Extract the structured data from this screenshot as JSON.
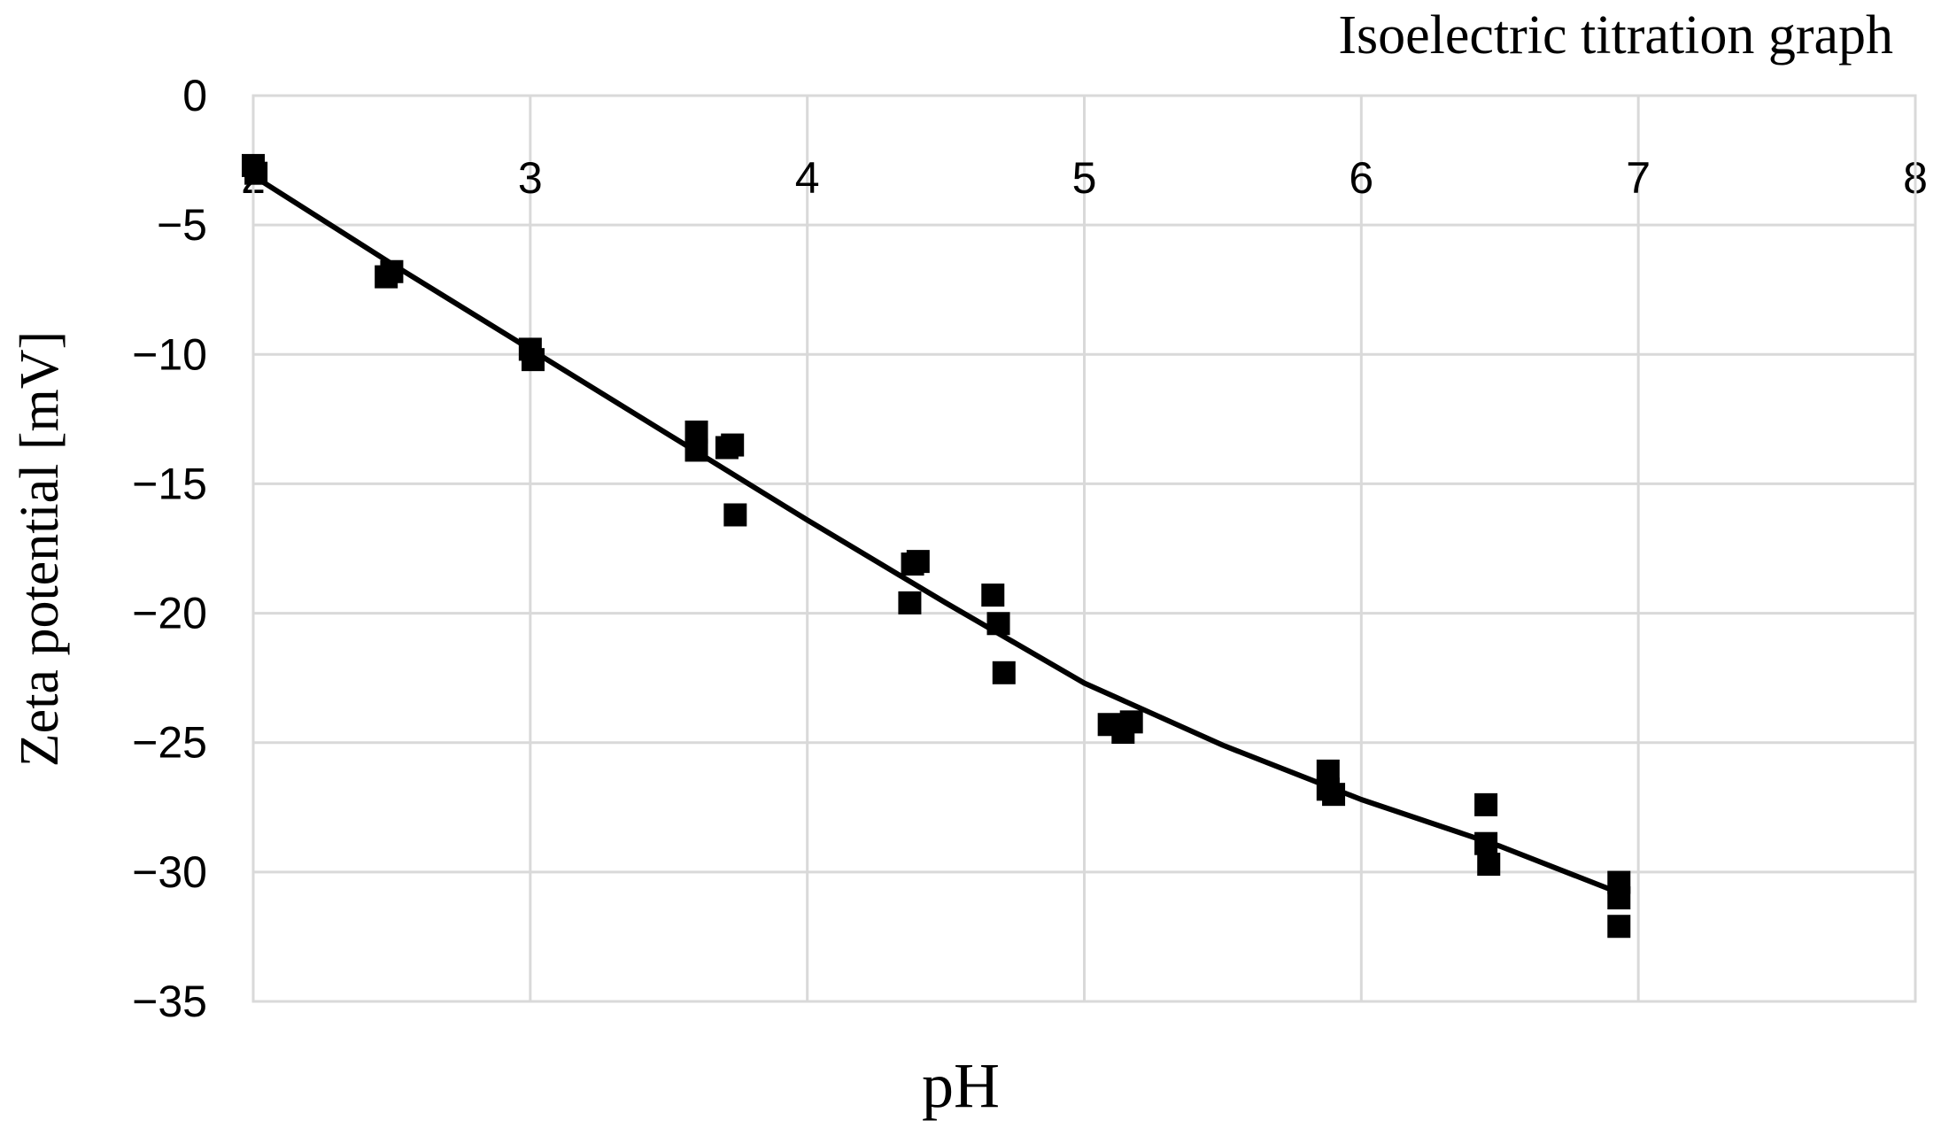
{
  "chart_data": {
    "type": "scatter",
    "title": "Isoelectric titration graph",
    "x_label": "pH",
    "y_label": "Zeta potential [mV]",
    "xlim": [
      2,
      8
    ],
    "xticks": [
      2,
      3,
      4,
      5,
      6,
      7,
      8
    ],
    "ylim": [
      -35,
      0
    ],
    "yticks": [
      {
        "value": 0,
        "label": "0"
      },
      {
        "value": -5,
        "label": "−5"
      },
      {
        "value": -10,
        "label": "−10"
      },
      {
        "value": -15,
        "label": "−15"
      },
      {
        "value": -20,
        "label": "−20"
      },
      {
        "value": -25,
        "label": "−25"
      },
      {
        "value": -30,
        "label": "−30"
      },
      {
        "value": -35,
        "label": "−35"
      }
    ],
    "grid": true,
    "series": [
      {
        "type": "scatter",
        "color": "#000000",
        "x": [
          2.0,
          2.01,
          2.48,
          2.5,
          3.0,
          3.01,
          3.6,
          3.6,
          3.71,
          3.73,
          3.74,
          4.37,
          4.38,
          4.4,
          4.67,
          4.69,
          4.71,
          5.09,
          5.14,
          5.17,
          5.88,
          5.88,
          5.9,
          6.45,
          6.45,
          6.46,
          6.93,
          6.93,
          6.93
        ],
        "values": [
          -2.7,
          -3.0,
          -7.0,
          -6.8,
          -9.8,
          -10.2,
          -13.0,
          -13.7,
          -13.6,
          -13.5,
          -16.2,
          -19.6,
          -18.1,
          -18.0,
          -19.3,
          -20.4,
          -22.3,
          -24.3,
          -24.6,
          -24.2,
          -26.1,
          -26.8,
          -27.0,
          -27.4,
          -28.9,
          -29.7,
          -30.4,
          -31.0,
          -32.1
        ]
      },
      {
        "type": "line",
        "color": "#000000",
        "x": [
          2,
          2.5,
          3,
          3.5,
          4,
          4.5,
          5,
          5.5,
          6,
          6.5,
          6.93
        ],
        "values": [
          -3.1,
          -6.5,
          -9.8,
          -13.1,
          -16.4,
          -19.6,
          -22.7,
          -25.1,
          -27.2,
          -29.0,
          -30.8
        ]
      }
    ]
  }
}
